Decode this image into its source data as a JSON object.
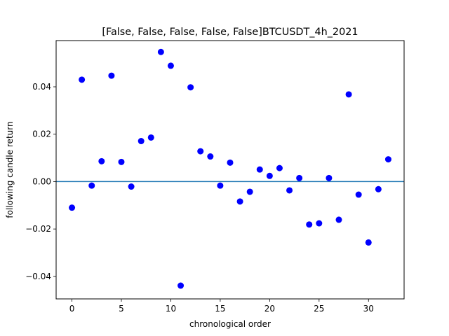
{
  "chart_data": {
    "type": "scatter",
    "title": "[False, False, False, False, False]BTCUSDT_4h_2021",
    "xlabel": "chronological order",
    "ylabel": "following candle return",
    "xlim": [
      -1.6,
      33.6
    ],
    "ylim": [
      -0.0495,
      0.0595
    ],
    "xticks": [
      0,
      5,
      10,
      15,
      20,
      25,
      30
    ],
    "yticks": [
      -0.04,
      -0.02,
      0.0,
      0.02,
      0.04
    ],
    "ytick_labels": [
      "−0.04",
      "−0.02",
      "0.00",
      "0.02",
      "0.04"
    ],
    "grid": false,
    "hline": {
      "y": 0.0,
      "color": "#1f77b4"
    },
    "marker_color": "#0000ff",
    "series": [
      {
        "x": [
          0,
          1,
          2,
          3,
          4,
          5,
          6,
          7,
          8,
          9,
          10,
          11,
          12,
          13,
          14,
          15,
          16,
          17,
          18,
          19,
          20,
          21,
          22,
          23,
          24,
          25,
          26,
          27,
          28,
          29,
          30,
          31,
          32
        ],
        "y": [
          -0.011,
          0.043,
          -0.0017,
          0.0086,
          0.0447,
          0.0083,
          -0.0021,
          0.0171,
          0.0186,
          0.0547,
          0.0489,
          -0.0439,
          0.0398,
          0.0128,
          0.0106,
          -0.0017,
          0.008,
          -0.0084,
          -0.0043,
          0.0051,
          0.0024,
          0.0057,
          -0.0037,
          0.0015,
          -0.0181,
          -0.0176,
          0.0015,
          -0.0161,
          0.0368,
          -0.0055,
          -0.0257,
          -0.0032,
          0.0094
        ]
      }
    ]
  }
}
